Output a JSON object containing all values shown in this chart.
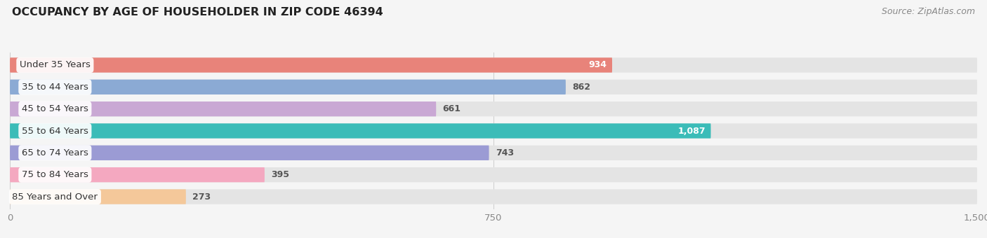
{
  "title": "OCCUPANCY BY AGE OF HOUSEHOLDER IN ZIP CODE 46394",
  "source": "Source: ZipAtlas.com",
  "categories": [
    "Under 35 Years",
    "35 to 44 Years",
    "45 to 54 Years",
    "55 to 64 Years",
    "65 to 74 Years",
    "75 to 84 Years",
    "85 Years and Over"
  ],
  "values": [
    934,
    862,
    661,
    1087,
    743,
    395,
    273
  ],
  "bar_colors": [
    "#E8837A",
    "#8BAAD4",
    "#C9A8D4",
    "#3BBCB8",
    "#9B9BD4",
    "#F4A8C0",
    "#F4C89A"
  ],
  "xlim": [
    0,
    1500
  ],
  "xticks": [
    0,
    750,
    1500
  ],
  "background_color": "#f5f5f5",
  "bar_bg_color": "#e4e4e4",
  "title_fontsize": 11.5,
  "label_fontsize": 9.5,
  "value_fontsize": 9,
  "source_fontsize": 9
}
